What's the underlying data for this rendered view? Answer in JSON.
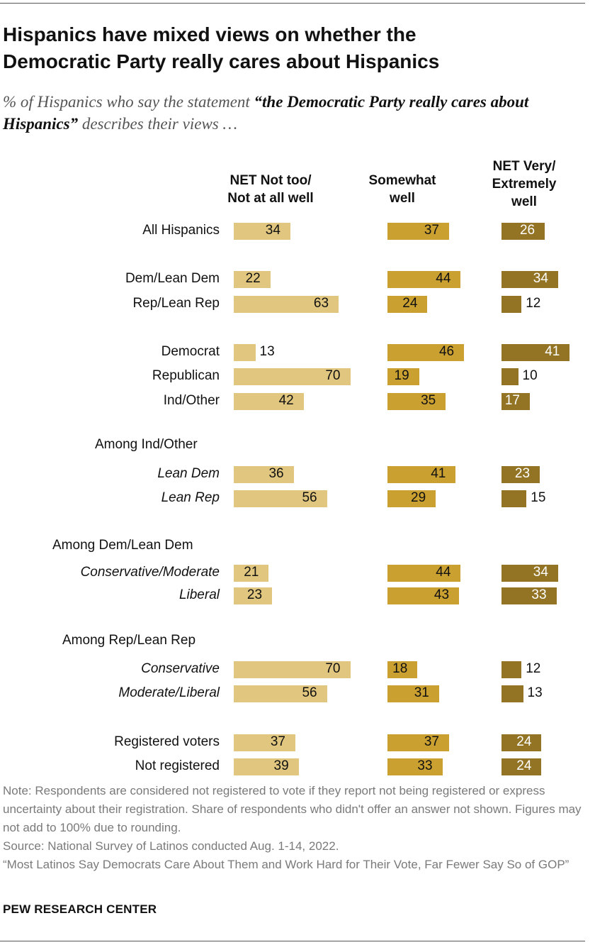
{
  "title_line1": "Hispanics have mixed views on whether the",
  "title_line2": "Democratic Party really cares about Hispanics",
  "subtitle_pre": "% of Hispanics who say the statement ",
  "subtitle_bold": "“the Democratic Party really cares about Hispanics”",
  "subtitle_post": " describes their views …",
  "columns": [
    {
      "line1": "NET Not too/",
      "line2": "Not at all well",
      "line3": ""
    },
    {
      "line1": "Somewhat",
      "line2": "well",
      "line3": ""
    },
    {
      "line1": "NET Very/",
      "line2": "Extremely",
      "line3": "well"
    }
  ],
  "colors": {
    "col1": "#e0c67e",
    "col2": "#caa031",
    "col3": "#937425"
  },
  "chart_data": {
    "type": "bar",
    "orientation": "horizontal",
    "series": [
      {
        "name": "NET Not too/Not at all well",
        "values": [
          34,
          22,
          63,
          13,
          70,
          42,
          36,
          56,
          21,
          23,
          70,
          56,
          37,
          39
        ]
      },
      {
        "name": "Somewhat well",
        "values": [
          37,
          44,
          24,
          46,
          19,
          35,
          41,
          29,
          44,
          43,
          18,
          31,
          37,
          33
        ]
      },
      {
        "name": "NET Very/Extremely well",
        "values": [
          26,
          34,
          12,
          41,
          10,
          17,
          23,
          15,
          34,
          33,
          12,
          13,
          24,
          24
        ]
      }
    ],
    "categories": [
      "All Hispanics",
      "Dem/Lean Dem",
      "Rep/Lean Rep",
      "Democrat",
      "Republican",
      "Ind/Other",
      "Lean Dem",
      "Lean Rep",
      "Conservative/Moderate",
      "Liberal",
      "Conservative",
      "Moderate/Liberal",
      "Registered voters",
      "Not registered"
    ],
    "italic_categories": [
      "Lean Dem",
      "Lean Rep",
      "Conservative/Moderate",
      "Liberal",
      "Conservative",
      "Moderate/Liberal"
    ],
    "group_headers": [
      "Among Ind/Other",
      "Among Dem/Lean Dem",
      "Among Rep/Lean Rep"
    ]
  },
  "notes": [
    "Note: Respondents are considered not registered to vote if they report not being registered or express uncertainty about their registration. Share of respondents who didn't offer an answer not shown. Figures may not add to 100% due to rounding.",
    "Source: National Survey of Latinos conducted Aug. 1-14, 2022.",
    "“Most Latinos Say Democrats Care About Them and Work Hard for Their Vote, Far Fewer Say So of GOP”"
  ],
  "brand": "PEW RESEARCH CENTER"
}
